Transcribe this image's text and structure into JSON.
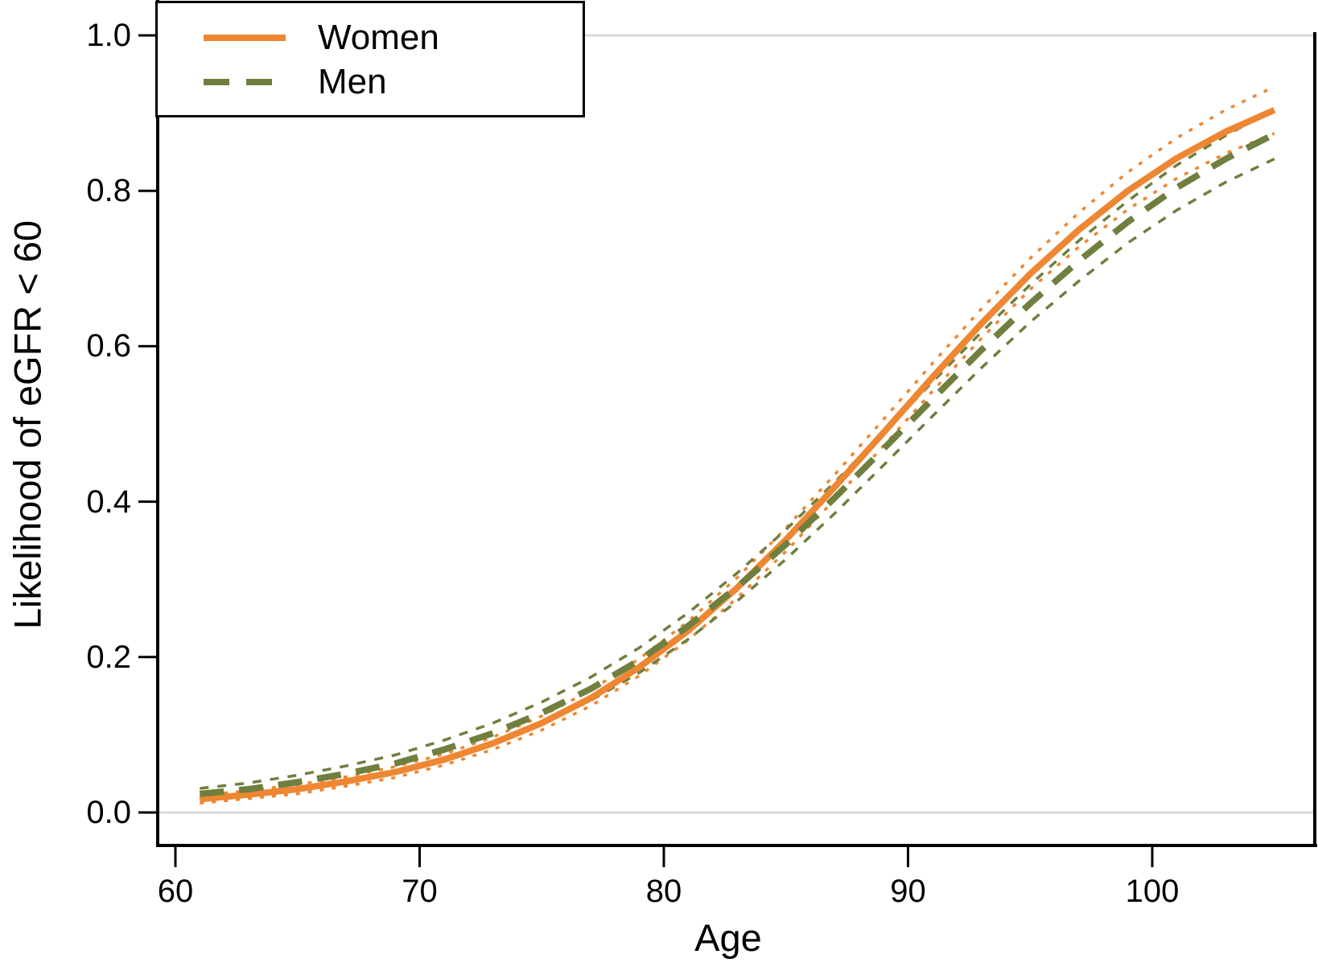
{
  "figure": {
    "background": "#ffffff",
    "axis_color": "#000000",
    "grid_color": "#d8d8d8"
  },
  "chart_data": {
    "type": "line",
    "title": "",
    "xlabel": "Age",
    "ylabel": "Likelihood of eGFR < 60",
    "xlim": [
      59.2,
      106.6
    ],
    "ylim": [
      -0.045,
      1.045
    ],
    "x_tick_values": [
      60,
      70,
      80,
      90,
      100
    ],
    "x_tick_labels": [
      "60",
      "70",
      "80",
      "90",
      "100"
    ],
    "y_tick_values": [
      0.0,
      0.2,
      0.4,
      0.6,
      0.8,
      1.0
    ],
    "y_tick_labels": [
      "0.0",
      "0.2",
      "0.4",
      "0.6",
      "0.8",
      "1.0"
    ],
    "gridlines_y": [
      0.0,
      1.0
    ],
    "grid_on": "horizontal gridlines only at 0.0 and 1.0",
    "legend": {
      "position": "top-left",
      "entries": [
        {
          "label": "Women",
          "color": "#EE8632",
          "pattern": "solid"
        },
        {
          "label": "Men",
          "color": "#6F7F3E",
          "pattern": "dashed"
        }
      ]
    },
    "x": [
      61,
      63,
      65,
      67,
      69,
      71,
      73,
      75,
      77,
      79,
      81,
      83,
      85,
      87,
      89,
      91,
      93,
      95,
      97,
      99,
      101,
      103,
      105
    ],
    "series": [
      {
        "name": "Women upper 95% CI",
        "color": "#EE8632",
        "pattern": "dotted",
        "weight": "thin",
        "values": [
          0.022,
          0.028,
          0.036,
          0.046,
          0.059,
          0.075,
          0.097,
          0.124,
          0.157,
          0.198,
          0.246,
          0.302,
          0.366,
          0.435,
          0.506,
          0.578,
          0.648,
          0.713,
          0.772,
          0.824,
          0.868,
          0.904,
          0.934
        ]
      },
      {
        "name": "Women lower 95% CI",
        "color": "#EE8632",
        "pattern": "dotted",
        "weight": "thin",
        "values": [
          0.012,
          0.018,
          0.024,
          0.034,
          0.045,
          0.061,
          0.081,
          0.106,
          0.137,
          0.176,
          0.222,
          0.276,
          0.336,
          0.403,
          0.472,
          0.542,
          0.61,
          0.673,
          0.728,
          0.776,
          0.816,
          0.848,
          0.874
        ]
      },
      {
        "name": "Men upper 95% CI",
        "color": "#6F7F3E",
        "pattern": "shortdash",
        "weight": "thin",
        "values": [
          0.031,
          0.038,
          0.048,
          0.06,
          0.074,
          0.093,
          0.115,
          0.142,
          0.174,
          0.212,
          0.257,
          0.308,
          0.364,
          0.425,
          0.489,
          0.554,
          0.618,
          0.679,
          0.736,
          0.787,
          0.833,
          0.871,
          0.905
        ]
      },
      {
        "name": "Men lower 95% CI",
        "color": "#6F7F3E",
        "pattern": "shortdash",
        "weight": "thin",
        "values": [
          0.017,
          0.022,
          0.03,
          0.04,
          0.052,
          0.069,
          0.089,
          0.114,
          0.144,
          0.18,
          0.223,
          0.272,
          0.326,
          0.385,
          0.447,
          0.51,
          0.572,
          0.631,
          0.684,
          0.733,
          0.775,
          0.811,
          0.841
        ]
      },
      {
        "name": "Women",
        "color": "#EE8632",
        "pattern": "solid",
        "weight": "thick",
        "values": [
          0.017,
          0.023,
          0.03,
          0.04,
          0.052,
          0.068,
          0.089,
          0.115,
          0.147,
          0.187,
          0.234,
          0.289,
          0.351,
          0.419,
          0.489,
          0.56,
          0.629,
          0.693,
          0.75,
          0.8,
          0.842,
          0.876,
          0.904
        ]
      },
      {
        "name": "Men",
        "color": "#6F7F3E",
        "pattern": "dashed",
        "weight": "thick",
        "values": [
          0.024,
          0.03,
          0.039,
          0.05,
          0.063,
          0.081,
          0.102,
          0.128,
          0.159,
          0.196,
          0.24,
          0.29,
          0.345,
          0.405,
          0.468,
          0.532,
          0.595,
          0.655,
          0.71,
          0.76,
          0.804,
          0.841,
          0.873
        ]
      }
    ]
  }
}
